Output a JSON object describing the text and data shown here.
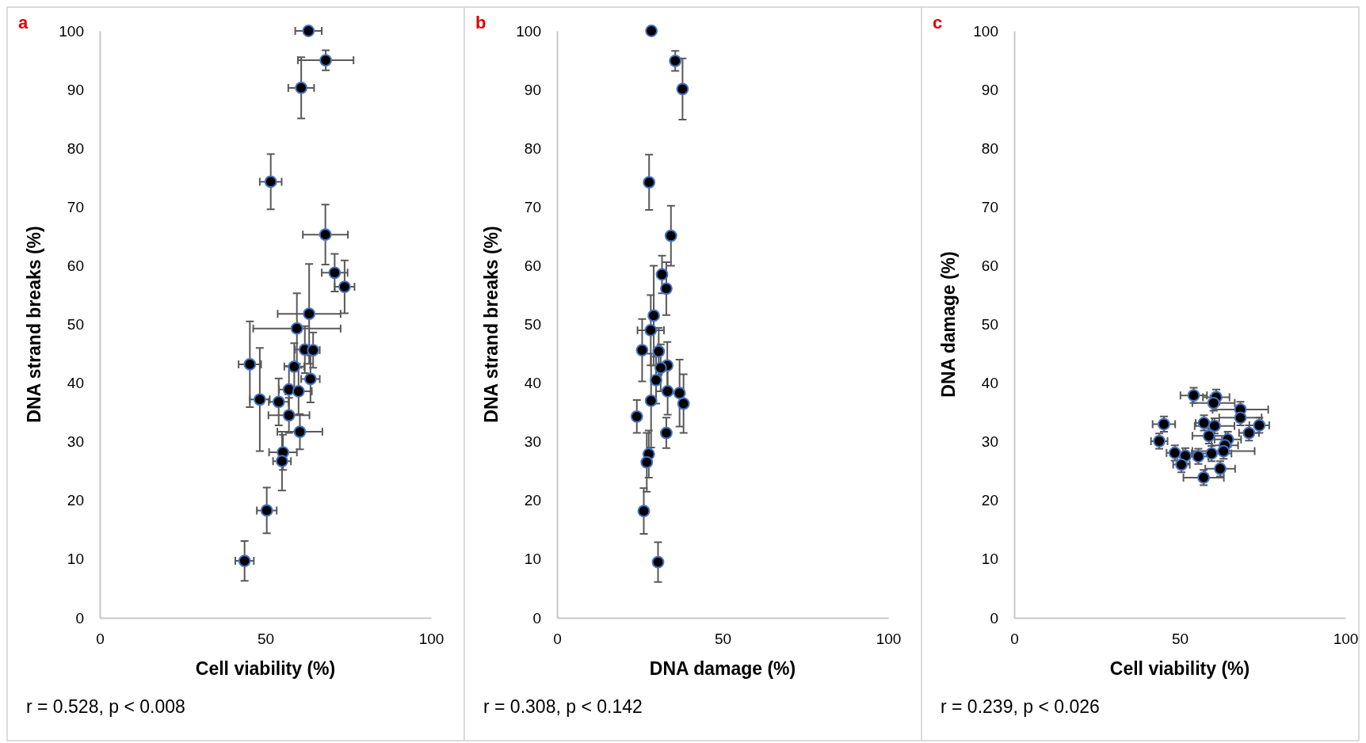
{
  "chart_data": [
    {
      "type": "scatter",
      "title": "a",
      "xlabel": "Cell viability (%)",
      "ylabel": "DNA strand breaks (%)",
      "xlim": [
        0,
        100
      ],
      "xticks": [
        0,
        50,
        100
      ],
      "ylim": [
        0,
        100
      ],
      "yticks": [
        0,
        10,
        20,
        30,
        40,
        50,
        60,
        70,
        80,
        90,
        100
      ],
      "marker": "circle",
      "color": "#000000",
      "annotations": [
        "r = 0.528, p < 0.008"
      ],
      "x": [
        63.0,
        68.2,
        60.8,
        51.6,
        68.1,
        70.9,
        73.9,
        63.2,
        59.5,
        61.9,
        64.4,
        45.3,
        58.7,
        63.6,
        57.1,
        60.0,
        48.3,
        54.0,
        57.1,
        60.4,
        55.3,
        55.0,
        50.4,
        43.7
      ],
      "values": [
        100,
        95.0,
        90.3,
        74.3,
        65.3,
        58.8,
        56.4,
        51.8,
        49.3,
        45.7,
        45.6,
        43.2,
        42.8,
        40.7,
        38.9,
        38.6,
        37.2,
        36.8,
        34.5,
        31.7,
        28.2,
        26.7,
        18.3,
        9.7
      ],
      "errors": [
        null,
        1.7,
        5.2,
        4.7,
        5.1,
        3.2,
        4.5,
        8.5,
        6,
        4,
        3,
        7.3,
        4,
        4,
        4,
        4,
        8.8,
        4,
        3,
        3,
        3,
        5,
        3.9,
        3.4
      ],
      "xerrors": [
        4,
        8.4,
        3.9,
        3.3,
        6.8,
        3.9,
        3,
        9.5,
        13.2,
        3,
        2,
        3.4,
        3,
        2.8,
        3,
        4,
        3,
        3,
        6.2,
        6.8,
        4.2,
        2.7,
        3,
        2.8
      ]
    },
    {
      "type": "scatter",
      "title": "b",
      "xlabel": "DNA damage (%)",
      "ylabel": "DNA strand breaks (%)",
      "xlim": [
        0,
        100
      ],
      "xticks": [
        0,
        50,
        100
      ],
      "ylim": [
        0,
        100
      ],
      "yticks": [
        0,
        10,
        20,
        30,
        40,
        50,
        60,
        70,
        80,
        90,
        100
      ],
      "marker": "circle",
      "color": "#000000",
      "annotations": [
        "r = 0.308, p < 0.142"
      ],
      "x": [
        28.5,
        35.7,
        37.9,
        27.8,
        34.4,
        31.7,
        33.0,
        29.2,
        28.3,
        25.7,
        30.7,
        33.3,
        31.3,
        29.9,
        33.4,
        37.0,
        38.2,
        28.4,
        24.1,
        33.0,
        27.7,
        27.1,
        26.2,
        30.5
      ],
      "values": [
        100,
        94.9,
        90.1,
        74.2,
        65.1,
        58.5,
        56.1,
        51.5,
        49.0,
        45.6,
        45.4,
        43.0,
        42.6,
        40.5,
        38.6,
        38.3,
        36.5,
        37.0,
        34.3,
        31.5,
        27.9,
        26.5,
        18.2,
        9.5
      ],
      "errors": [
        null,
        1.7,
        5.2,
        4.7,
        5.1,
        3.2,
        4.5,
        8.5,
        6,
        5.3,
        4,
        4,
        4,
        4,
        4,
        5.7,
        5,
        8,
        2.8,
        2.6,
        4,
        5,
        3.9,
        3.4
      ],
      "xerrors": [
        null,
        null,
        null,
        null,
        null,
        null,
        null,
        null,
        4,
        null,
        null,
        null,
        null,
        null,
        null,
        null,
        null,
        null,
        null,
        null,
        null,
        null,
        null,
        null
      ]
    },
    {
      "type": "scatter",
      "title": "c",
      "xlabel": "Cell viability (%)",
      "ylabel": "DNA damage (%)",
      "xlim": [
        0,
        100
      ],
      "xticks": [
        0,
        50,
        100
      ],
      "ylim": [
        0,
        100
      ],
      "yticks": [
        0,
        10,
        20,
        30,
        40,
        50,
        60,
        70,
        80,
        90,
        100
      ],
      "marker": "circle",
      "color": "#000000",
      "annotations": [
        "r = 0.239, p < 0.026"
      ],
      "x": [
        54.2,
        61.0,
        60.2,
        68.3,
        68.3,
        45.2,
        57.3,
        60.5,
        74.0,
        70.9,
        58.8,
        64.5,
        43.8,
        63.6,
        63.2,
        59.6,
        48.5,
        51.7,
        55.6,
        50.5,
        62.2,
        57.2
      ],
      "values": [
        37.9,
        37.6,
        36.6,
        35.5,
        34.1,
        33.0,
        33.2,
        32.7,
        32.8,
        31.5,
        31.0,
        30.4,
        30.1,
        29.4,
        28.4,
        28.0,
        28.1,
        27.6,
        27.5,
        26.1,
        25.4,
        23.9
      ],
      "errors": [
        1.3,
        1.3,
        1.3,
        1.3,
        1.3,
        1.3,
        1.3,
        1.3,
        1.3,
        1.3,
        1.3,
        1.3,
        1.3,
        1.3,
        1.3,
        1.3,
        1.3,
        1.3,
        1.3,
        1.3,
        1.3,
        1.3
      ],
      "xerrors": [
        4,
        4,
        6.4,
        8.4,
        6.4,
        3.4,
        2.5,
        6,
        3,
        3,
        5,
        4,
        2.5,
        4,
        9.4,
        6,
        2.5,
        2.5,
        3,
        2.5,
        4.5,
        6.1
      ]
    }
  ]
}
